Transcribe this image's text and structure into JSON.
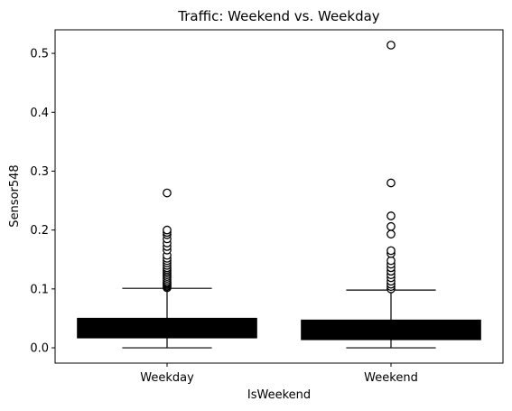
{
  "chart_data": {
    "type": "box",
    "title": "Traffic: Weekend vs. Weekday",
    "xlabel": "IsWeekend",
    "ylabel": "Sensor548",
    "categories": [
      "Weekday",
      "Weekend"
    ],
    "ylim": [
      -0.026,
      0.54
    ],
    "yticks": [
      0.0,
      0.1,
      0.2,
      0.3,
      0.4,
      0.5
    ],
    "ytick_labels": [
      "0.0",
      "0.1",
      "0.2",
      "0.3",
      "0.4",
      "0.5"
    ],
    "grid": false,
    "legend": "none",
    "boxes": [
      {
        "category": "Weekday",
        "whisker_low": 0.0,
        "q1": 0.017,
        "median": 0.032,
        "q3": 0.05,
        "whisker_high": 0.101,
        "outliers": [
          0.102,
          0.104,
          0.106,
          0.108,
          0.11,
          0.112,
          0.115,
          0.118,
          0.121,
          0.124,
          0.127,
          0.13,
          0.133,
          0.136,
          0.14,
          0.144,
          0.148,
          0.152,
          0.157,
          0.166,
          0.172,
          0.178,
          0.185,
          0.192,
          0.196,
          0.2,
          0.263
        ]
      },
      {
        "category": "Weekend",
        "whisker_low": 0.0,
        "q1": 0.014,
        "median": 0.03,
        "q3": 0.047,
        "whisker_high": 0.098,
        "outliers": [
          0.1,
          0.104,
          0.108,
          0.113,
          0.119,
          0.124,
          0.13,
          0.136,
          0.142,
          0.148,
          0.16,
          0.165,
          0.193,
          0.206,
          0.224,
          0.28,
          0.514
        ]
      }
    ],
    "colors": {
      "box_fill": "#000000",
      "line": "#000000",
      "outlier_fill": "#ffffff"
    }
  }
}
